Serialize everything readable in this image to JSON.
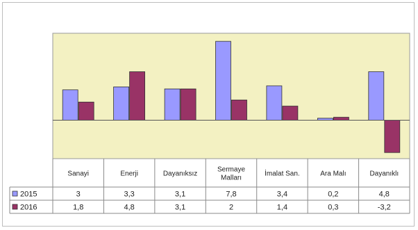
{
  "chart_data": {
    "type": "bar",
    "title": "",
    "xlabel": "",
    "ylabel": "",
    "categories": [
      "Sanayi",
      "Enerji",
      "Dayanıksız",
      "Sermaye Malları",
      "İmalat San.",
      "Ara Malı",
      "Dayanıklı"
    ],
    "series": [
      {
        "name": "2015",
        "values": [
          3,
          3.3,
          3.1,
          7.8,
          3.4,
          0.2,
          4.8
        ],
        "labels": [
          "3",
          "3,3",
          "3,1",
          "7,8",
          "3,4",
          "0,2",
          "4,8"
        ],
        "color": "#9999ff"
      },
      {
        "name": "2016",
        "values": [
          1.8,
          4.8,
          3.1,
          2,
          1.4,
          0.3,
          -3.2
        ],
        "labels": [
          "1,8",
          "4,8",
          "3,1",
          "2",
          "1,4",
          "0,3",
          "-3,2"
        ],
        "color": "#993366"
      }
    ],
    "ylim": [
      -3.8,
      8.6
    ],
    "grid": false,
    "data_table": true,
    "plot_background": "#f3f1c2"
  }
}
